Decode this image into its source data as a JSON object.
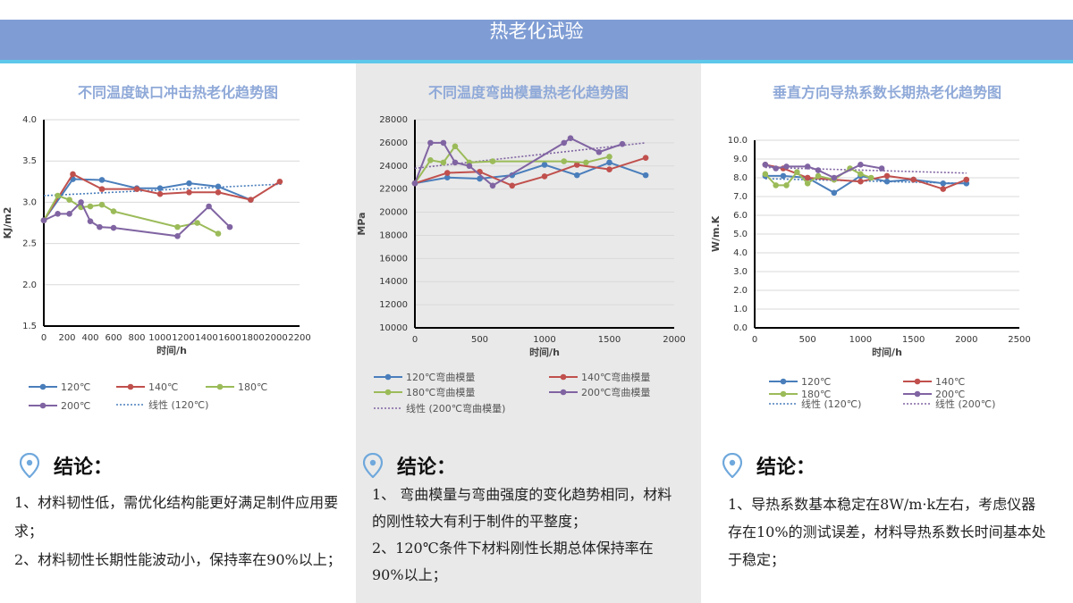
{
  "header": {
    "title": "热老化试验"
  },
  "panels": [
    {
      "title": "不同温度缺口冲击热老化趋势图",
      "conclusion_label": "结论：",
      "conclusion_lines": [
        "1、材料韧性低，需优化结构能更好满足制件应用要求；",
        "2、材料韧性长期性能波动小，保持率在90%以上；"
      ]
    },
    {
      "title": "不同温度弯曲模量热老化趋势图",
      "conclusion_label": "结论：",
      "conclusion_lines": [
        "1、 弯曲模量与弯曲强度的变化趋势相同，材料的刚性较大有利于制件的平整度；",
        "2、120℃条件下材料刚性长期总体保持率在90%以上；"
      ]
    },
    {
      "title": "垂直方向导热系数长期热老化趋势图",
      "conclusion_label": "结论：",
      "conclusion_lines": [
        "1、导热系数基本稳定在8W/m·k左右，考虑仪器存在10%的测试误差，材料导热系数长时间基本处于稳定；"
      ]
    }
  ],
  "chart_data": [
    {
      "type": "line",
      "xlabel": "时间/h",
      "ylabel": "KJ/m2",
      "xlim": [
        0,
        2200
      ],
      "ylim": [
        1.5,
        4.0
      ],
      "xticks": [
        0,
        200,
        400,
        600,
        800,
        1000,
        1200,
        1400,
        1600,
        1800,
        2000,
        2200
      ],
      "yticks": [
        1.5,
        2.0,
        2.5,
        3.0,
        3.5,
        4.0
      ],
      "ytick_labels": [
        "1.5",
        "2.0",
        "2.5",
        "3.0",
        "3.5",
        "4.0"
      ],
      "legend_placement": "bottom",
      "series": [
        {
          "name": "120℃",
          "color": "#4a7ebb",
          "x": [
            0,
            250,
            500,
            800,
            1000,
            1250,
            1500,
            1780
          ],
          "y": [
            2.78,
            3.28,
            3.27,
            3.17,
            3.17,
            3.23,
            3.19,
            3.03
          ]
        },
        {
          "name": "140℃",
          "color": "#c0504d",
          "x": [
            0,
            250,
            500,
            800,
            1000,
            1250,
            1500,
            1780,
            2030
          ],
          "y": [
            2.78,
            3.34,
            3.16,
            3.16,
            3.1,
            3.12,
            3.12,
            3.03,
            3.25
          ]
        },
        {
          "name": "180℃",
          "color": "#9bbb59",
          "x": [
            0,
            120,
            220,
            320,
            400,
            500,
            600,
            1150,
            1320,
            1500
          ],
          "y": [
            2.78,
            3.08,
            3.03,
            2.94,
            2.95,
            2.97,
            2.89,
            2.7,
            2.75,
            2.62
          ]
        },
        {
          "name": "200℃",
          "color": "#8064a2",
          "x": [
            0,
            120,
            220,
            320,
            400,
            480,
            600,
            1150,
            1420,
            1600
          ],
          "y": [
            2.78,
            2.86,
            2.86,
            3.0,
            2.77,
            2.7,
            2.69,
            2.59,
            2.95,
            2.7
          ]
        }
      ],
      "trendline": {
        "name": "线性 (120℃)",
        "color": "#4a7ebb",
        "x": [
          0,
          2050
        ],
        "y": [
          3.08,
          3.22
        ]
      }
    },
    {
      "type": "line",
      "xlabel": "时间/h",
      "ylabel": "MPa",
      "xlim": [
        0,
        2000
      ],
      "ylim": [
        10000,
        28000
      ],
      "xticks": [
        0,
        500,
        1000,
        1500,
        2000
      ],
      "yticks": [
        10000,
        12000,
        14000,
        16000,
        18000,
        20000,
        22000,
        24000,
        26000,
        28000
      ],
      "ytick_labels": [
        "10000",
        "12000",
        "14000",
        "16000",
        "18000",
        "20000",
        "22000",
        "24000",
        "26000",
        "28000"
      ],
      "legend_placement": "bottom",
      "series": [
        {
          "name": "120℃弯曲模量",
          "color": "#4a7ebb",
          "x": [
            0,
            250,
            500,
            750,
            1000,
            1250,
            1500,
            1780
          ],
          "y": [
            22500,
            23000,
            22900,
            23200,
            24100,
            23200,
            24300,
            23200
          ]
        },
        {
          "name": "140℃弯曲模量",
          "color": "#c0504d",
          "x": [
            0,
            250,
            500,
            750,
            1000,
            1250,
            1500,
            1780
          ],
          "y": [
            22500,
            23400,
            23500,
            22300,
            23100,
            24100,
            23700,
            24700
          ]
        },
        {
          "name": "180℃弯曲模量",
          "color": "#9bbb59",
          "x": [
            0,
            120,
            220,
            310,
            420,
            600,
            1150,
            1320,
            1500
          ],
          "y": [
            22500,
            24500,
            24300,
            25700,
            24300,
            24400,
            24400,
            24300,
            24800
          ]
        },
        {
          "name": "200℃弯曲模量",
          "color": "#8064a2",
          "x": [
            0,
            120,
            220,
            310,
            420,
            600,
            1150,
            1200,
            1420,
            1600
          ],
          "y": [
            22500,
            26000,
            26000,
            24300,
            24000,
            22300,
            26000,
            26400,
            25200,
            25900
          ]
        }
      ],
      "trendline": {
        "name": "线性 (200℃弯曲模量)",
        "color": "#8064a2",
        "x": [
          0,
          1780
        ],
        "y": [
          23800,
          26000
        ]
      }
    },
    {
      "type": "line",
      "xlabel": "时间/h",
      "ylabel": "W/m.K",
      "xlim": [
        0,
        2500
      ],
      "ylim": [
        0.0,
        10.0
      ],
      "xticks": [
        0,
        500,
        1000,
        1500,
        2000,
        2500
      ],
      "yticks": [
        0,
        1,
        2,
        3,
        4,
        5,
        6,
        7,
        8,
        9,
        10
      ],
      "ytick_labels": [
        "0.0",
        "1.0",
        "2.0",
        "3.0",
        "4.0",
        "5.0",
        "6.0",
        "7.0",
        "8.0",
        "9.0",
        "10.0"
      ],
      "legend_placement": "bottom",
      "series": [
        {
          "name": "120℃",
          "color": "#4a7ebb",
          "x": [
            100,
            270,
            500,
            750,
            1000,
            1250,
            1500,
            1780,
            2000
          ],
          "y": [
            8.1,
            8.1,
            8.0,
            7.2,
            8.1,
            7.8,
            7.9,
            7.7,
            7.7
          ]
        },
        {
          "name": "140℃",
          "color": "#c0504d",
          "x": [
            100,
            270,
            500,
            750,
            1000,
            1250,
            1500,
            1780,
            2000
          ],
          "y": [
            8.7,
            8.5,
            8.0,
            7.9,
            7.8,
            8.1,
            7.9,
            7.4,
            7.9
          ]
        },
        {
          "name": "180℃",
          "color": "#9bbb59",
          "x": [
            100,
            200,
            300,
            400,
            500,
            600,
            750,
            900,
            1000,
            1100
          ],
          "y": [
            8.2,
            7.6,
            7.6,
            8.3,
            7.7,
            8.1,
            7.9,
            8.5,
            8.2,
            8.0
          ]
        },
        {
          "name": "200℃",
          "color": "#8064a2",
          "x": [
            100,
            200,
            300,
            500,
            600,
            750,
            1000,
            1200
          ],
          "y": [
            8.7,
            8.5,
            8.6,
            8.6,
            8.4,
            8.0,
            8.7,
            8.5
          ]
        }
      ],
      "trendlines": [
        {
          "name": "线性 (120℃)",
          "color": "#4a7ebb",
          "x": [
            100,
            2000
          ],
          "y": [
            7.95,
            7.7
          ]
        },
        {
          "name": "线性 (200℃)",
          "color": "#8064a2",
          "x": [
            100,
            2000
          ],
          "y": [
            8.55,
            8.25
          ]
        }
      ]
    }
  ]
}
